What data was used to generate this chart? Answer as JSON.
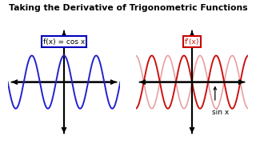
{
  "title": "Taking the Derivative of Trigonometric Functions",
  "title_fontsize": 7.8,
  "left_label": "f(x) = cos x",
  "right_label": "f’(x)",
  "bottom_label": "sin x",
  "blue_color": "#2222cc",
  "red_color": "#cc1111",
  "red_light_color": "#e8a0a0",
  "bg_color": "#ffffff",
  "axis_color": "#000000",
  "left_box_color": "#0000bb",
  "right_box_color": "#cc0000",
  "label_fontsize": 6.5,
  "sinx_fontsize": 6.5,
  "x_range": 11.0,
  "y_range": 1.8,
  "wave_amplitude": 0.85,
  "wave_freq": 1.0
}
